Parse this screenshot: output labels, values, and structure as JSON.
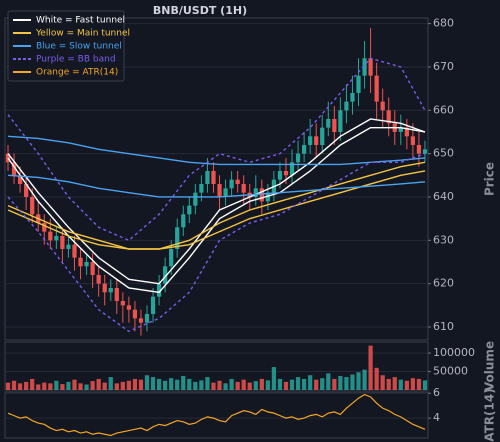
{
  "chart_data": [
    {
      "type": "candlestick",
      "title": "BNB/USDT (1H)",
      "ylabel": "Price",
      "up_color": "#26a69a",
      "down_color": "#ef5350",
      "grid": true,
      "open": [
        650,
        648,
        645,
        643,
        640,
        636,
        634,
        632,
        630,
        631,
        628,
        629,
        626,
        624,
        625,
        622,
        620,
        618,
        619,
        616,
        615,
        614,
        612,
        611,
        613,
        617,
        620,
        624,
        628,
        633,
        636,
        638,
        641,
        643,
        646,
        643,
        640,
        642,
        644,
        643,
        641,
        640,
        642,
        639,
        641,
        644,
        646,
        645,
        648,
        650,
        652,
        654,
        652,
        656,
        658,
        655,
        660,
        662,
        664,
        668,
        672,
        668,
        662,
        660,
        657,
        655,
        656,
        654,
        652,
        650
      ],
      "high": [
        652,
        650,
        647,
        645,
        642,
        639,
        636,
        635,
        633,
        633,
        631,
        631,
        628,
        627,
        627,
        624,
        622,
        621,
        621,
        618,
        617,
        616,
        614,
        615,
        619,
        622,
        626,
        630,
        635,
        638,
        640,
        643,
        645,
        649,
        648,
        645,
        644,
        646,
        646,
        645,
        643,
        645,
        644,
        643,
        646,
        648,
        649,
        651,
        653,
        655,
        658,
        657,
        659,
        662,
        661,
        663,
        666,
        668,
        672,
        676,
        679,
        671,
        665,
        663,
        660,
        659,
        658,
        657,
        655,
        653
      ],
      "low": [
        646,
        643,
        641,
        637,
        634,
        632,
        629,
        628,
        628,
        625,
        626,
        623,
        621,
        622,
        619,
        617,
        615,
        616,
        613,
        611,
        611,
        609,
        608,
        609,
        611,
        615,
        618,
        622,
        626,
        631,
        634,
        636,
        639,
        641,
        641,
        637,
        638,
        640,
        641,
        638,
        637,
        638,
        636,
        637,
        639,
        642,
        643,
        643,
        646,
        648,
        650,
        649,
        650,
        654,
        652,
        653,
        657,
        659,
        661,
        665,
        664,
        658,
        656,
        654,
        652,
        652,
        651,
        649,
        647,
        648
      ],
      "close": [
        648,
        645,
        643,
        640,
        636,
        634,
        632,
        630,
        631,
        628,
        629,
        626,
        624,
        625,
        622,
        620,
        618,
        619,
        616,
        615,
        614,
        612,
        611,
        613,
        617,
        620,
        624,
        628,
        633,
        636,
        638,
        641,
        643,
        646,
        643,
        640,
        642,
        644,
        643,
        641,
        640,
        642,
        639,
        641,
        644,
        646,
        645,
        648,
        650,
        652,
        654,
        652,
        656,
        658,
        655,
        660,
        662,
        664,
        668,
        672,
        668,
        662,
        660,
        657,
        655,
        656,
        654,
        652,
        650,
        651
      ],
      "legend": [
        {
          "label": "White = Fast tunnel",
          "color": "#ffffff",
          "dash": false
        },
        {
          "label": "Yellow = Main tunnel",
          "color": "#f5c542",
          "dash": false
        },
        {
          "label": "Blue = Slow tunnel",
          "color": "#4aa3f0",
          "dash": false
        },
        {
          "label": "Purple = BB band",
          "color": "#7b5cf0",
          "dash": true
        },
        {
          "label": "Orange = ATR(14)",
          "color": "#f5a623",
          "dash": false
        }
      ],
      "lines": [
        {
          "color": "#ffffff",
          "dash": false,
          "x": [
            0,
            5,
            10,
            15,
            20,
            25,
            30,
            35,
            40,
            45,
            50,
            55,
            60,
            65,
            69
          ],
          "values": [
            650,
            641,
            633,
            626,
            621,
            620,
            628,
            637,
            640,
            643,
            648,
            654,
            658,
            657,
            655
          ]
        },
        {
          "color": "#ffffff",
          "dash": false,
          "x": [
            0,
            5,
            10,
            15,
            20,
            25,
            30,
            35,
            40,
            45,
            50,
            55,
            60,
            65,
            69
          ],
          "values": [
            649,
            639,
            631,
            624,
            619,
            618,
            626,
            635,
            639,
            641,
            646,
            652,
            656,
            656,
            655
          ]
        },
        {
          "color": "#f5c542",
          "dash": false,
          "x": [
            0,
            5,
            10,
            15,
            20,
            25,
            30,
            35,
            40,
            45,
            50,
            55,
            60,
            65,
            69
          ],
          "values": [
            638,
            635,
            632,
            630,
            628,
            628,
            630,
            634,
            637,
            639,
            641,
            643,
            645,
            647,
            648
          ]
        },
        {
          "color": "#f5c542",
          "dash": false,
          "x": [
            0,
            5,
            10,
            15,
            20,
            25,
            30,
            35,
            40,
            45,
            50,
            55,
            60,
            65,
            69
          ],
          "values": [
            637,
            634,
            631,
            629,
            628,
            628,
            629,
            632,
            635,
            637,
            639,
            641,
            643,
            645,
            646
          ]
        },
        {
          "color": "#4aa3f0",
          "dash": false,
          "x": [
            0,
            5,
            10,
            15,
            20,
            25,
            30,
            35,
            40,
            45,
            50,
            55,
            60,
            65,
            69
          ],
          "values": [
            654,
            653.5,
            652.5,
            651,
            650,
            649,
            648,
            647.5,
            647.5,
            647.5,
            647.5,
            647.5,
            648,
            648.5,
            649
          ]
        },
        {
          "color": "#4aa3f0",
          "dash": false,
          "x": [
            0,
            5,
            10,
            15,
            20,
            25,
            30,
            35,
            40,
            45,
            50,
            55,
            60,
            65,
            69
          ],
          "values": [
            645,
            644.5,
            643.5,
            642,
            641,
            640,
            640,
            640,
            640.5,
            641,
            641.5,
            642,
            642.5,
            643,
            643.5
          ]
        },
        {
          "color": "#7b5cf0",
          "dash": true,
          "x": [
            0,
            5,
            10,
            15,
            20,
            25,
            30,
            35,
            40,
            45,
            50,
            55,
            60,
            65,
            69
          ],
          "values": [
            659,
            650,
            640,
            633,
            630,
            636,
            645,
            650,
            648,
            650,
            656,
            664,
            672,
            670,
            660
          ]
        },
        {
          "color": "#7b5cf0",
          "dash": true,
          "x": [
            0,
            5,
            10,
            15,
            20,
            25,
            30,
            35,
            40,
            45,
            50,
            55,
            60,
            65,
            69
          ],
          "values": [
            640,
            632,
            623,
            614,
            609,
            612,
            618,
            630,
            634,
            636,
            640,
            644,
            648,
            648,
            650
          ]
        }
      ],
      "ylim": [
        607,
        681.3
      ],
      "yticks": [
        610,
        620,
        630,
        640,
        650,
        660,
        670,
        680
      ]
    },
    {
      "type": "bar",
      "ylabel": "Volume",
      "grid": true,
      "values": [
        20000,
        25000,
        18000,
        22000,
        30000,
        15000,
        20000,
        18000,
        25000,
        16000,
        22000,
        28000,
        18000,
        15000,
        24000,
        30000,
        20000,
        35000,
        18000,
        22000,
        25000,
        30000,
        28000,
        40000,
        35000,
        30000,
        25000,
        32000,
        28000,
        38000,
        30000,
        22000,
        26000,
        35000,
        20000,
        25000,
        18000,
        30000,
        22000,
        28000,
        20000,
        24000,
        30000,
        26000,
        62000,
        30000,
        22000,
        28000,
        35000,
        30000,
        40000,
        28000,
        32000,
        45000,
        30000,
        38000,
        35000,
        42000,
        48000,
        55000,
        120000,
        60000,
        40000,
        30000,
        35000,
        28000,
        25000,
        32000,
        30000,
        26000
      ],
      "ylim": [
        0,
        130000
      ],
      "yticks": [
        50000,
        100000
      ]
    },
    {
      "type": "line",
      "ylabel": "ATR(14)",
      "color": "#f5a623",
      "grid": true,
      "values": [
        4.4,
        4.2,
        4.0,
        4.1,
        3.8,
        3.6,
        3.5,
        3.2,
        3.0,
        3.1,
        2.9,
        3.0,
        2.8,
        2.9,
        2.7,
        2.8,
        2.7,
        2.6,
        2.8,
        2.9,
        3.0,
        3.1,
        3.2,
        3.0,
        3.3,
        3.5,
        3.4,
        3.6,
        3.8,
        3.7,
        3.5,
        3.6,
        3.9,
        4.1,
        4.0,
        3.8,
        3.7,
        4.2,
        4.4,
        4.6,
        4.5,
        4.3,
        4.7,
        4.5,
        4.4,
        4.2,
        4.0,
        4.1,
        3.9,
        4.0,
        4.2,
        4.3,
        4.1,
        4.4,
        4.5,
        4.3,
        4.8,
        5.2,
        5.6,
        5.9,
        5.7,
        5.2,
        4.8,
        4.6,
        4.3,
        4.1,
        3.8,
        3.5,
        3.3,
        3.1
      ],
      "ylim": [
        2.4,
        6.1
      ],
      "yticks": [
        4,
        6
      ]
    }
  ]
}
